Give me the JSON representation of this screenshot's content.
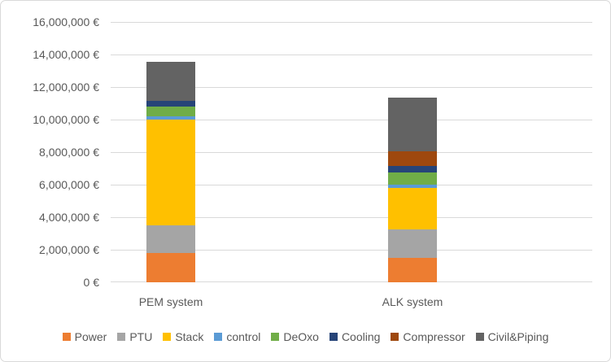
{
  "chart_data": {
    "type": "bar",
    "stacked": true,
    "title": "",
    "categories": [
      "PEM system",
      "ALK system"
    ],
    "series": [
      {
        "name": "Power",
        "color": "#ED7D31",
        "values": [
          1800000,
          1500000
        ]
      },
      {
        "name": "PTU",
        "color": "#A5A5A5",
        "values": [
          1700000,
          1750000
        ]
      },
      {
        "name": "Stack",
        "color": "#FFC000",
        "values": [
          6500000,
          2550000
        ]
      },
      {
        "name": "control",
        "color": "#5B9BD5",
        "values": [
          200000,
          200000
        ]
      },
      {
        "name": "DeOxo",
        "color": "#70AD47",
        "values": [
          600000,
          750000
        ]
      },
      {
        "name": "Cooling",
        "color": "#264478",
        "values": [
          350000,
          400000
        ]
      },
      {
        "name": "Compressor",
        "color": "#9E480E",
        "values": [
          0,
          900000
        ]
      },
      {
        "name": "Civil&Piping",
        "color": "#636363",
        "values": [
          2400000,
          3300000
        ]
      }
    ],
    "totals": [
      13550000,
      11350000
    ],
    "ylim": [
      0,
      16000000
    ],
    "ytick_step": 2000000,
    "ytick_labels": [
      "0 €",
      "2,000,000 €",
      "4,000,000 €",
      "6,000,000 €",
      "8,000,000 €",
      "10,000,000 €",
      "12,000,000 €",
      "14,000,000 €",
      "16,000,000 €"
    ],
    "grid": true,
    "legend_position": "bottom"
  },
  "colors": {
    "grid": "#D9D9D9",
    "border": "#D9D9D9",
    "axis_text": "#595959",
    "background": "#FFFFFF"
  }
}
